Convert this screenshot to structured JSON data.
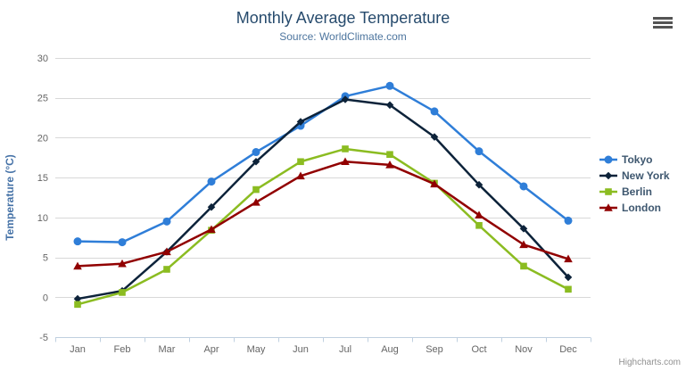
{
  "header": {
    "title": "Monthly Average Temperature",
    "subtitle": "Source: WorldClimate.com"
  },
  "credits_label": "Highcharts.com",
  "context_menu_icon": "hamburger-icon",
  "chart_data": {
    "type": "line",
    "title": "Monthly Average Temperature",
    "subtitle": "Source: WorldClimate.com",
    "categories": [
      "Jan",
      "Feb",
      "Mar",
      "Apr",
      "May",
      "Jun",
      "Jul",
      "Aug",
      "Sep",
      "Oct",
      "Nov",
      "Dec"
    ],
    "series": [
      {
        "name": "Tokyo",
        "color": "#2f7ed8",
        "marker": "circle",
        "values": [
          7.0,
          6.9,
          9.5,
          14.5,
          18.2,
          21.5,
          25.2,
          26.5,
          23.3,
          18.3,
          13.9,
          9.6
        ]
      },
      {
        "name": "New York",
        "color": "#0d233a",
        "marker": "diamond",
        "values": [
          -0.2,
          0.8,
          5.7,
          11.3,
          17.0,
          22.0,
          24.8,
          24.1,
          20.1,
          14.1,
          8.6,
          2.5
        ]
      },
      {
        "name": "Berlin",
        "color": "#8bbc21",
        "marker": "square",
        "values": [
          -0.9,
          0.6,
          3.5,
          8.4,
          13.5,
          17.0,
          18.6,
          17.9,
          14.3,
          9.0,
          3.9,
          1.0
        ]
      },
      {
        "name": "London",
        "color": "#910000",
        "marker": "triangle",
        "values": [
          3.9,
          4.2,
          5.7,
          8.5,
          11.9,
          15.2,
          17.0,
          16.6,
          14.2,
          10.3,
          6.6,
          4.8
        ]
      }
    ],
    "xlabel": "",
    "ylabel": "Temperature (°C)",
    "ylim": [
      -5,
      30
    ],
    "ytick_step": 5,
    "yticks": [
      -5,
      0,
      5,
      10,
      15,
      20,
      25,
      30
    ],
    "grid": true,
    "legend_position": "right",
    "colors": {
      "title": "#274b6d",
      "subtitle": "#4d759e",
      "axis_title": "#4572a7",
      "tick_label": "#666666",
      "gridline": "#d8d8d8",
      "axis_line": "#c0d0e0",
      "legend_text": "#3e576f"
    }
  }
}
